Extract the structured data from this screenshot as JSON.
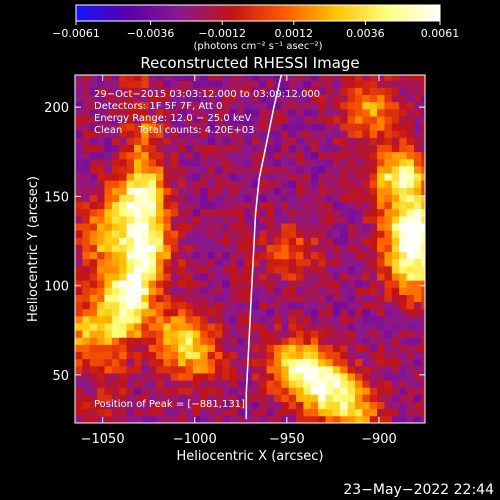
{
  "chart_data": {
    "type": "heatmap",
    "title": "Reconstructed RHESSI Image",
    "xlabel": "Heliocentric X (arcsec)",
    "ylabel": "Heliocentric Y (arcsec)",
    "xlim": [
      -1065,
      -875
    ],
    "ylim": [
      23,
      218
    ],
    "x_ticks": [
      -1050,
      -1000,
      -950,
      -900
    ],
    "x_tick_labels": [
      "−1050",
      "−1000",
      "−950",
      "−900"
    ],
    "y_ticks": [
      50,
      100,
      150,
      200
    ],
    "y_tick_labels": [
      "50",
      "100",
      "150",
      "200"
    ],
    "colorbar": {
      "min": -0.0061,
      "max": 0.0061,
      "ticks": [
        -0.0061,
        -0.0036,
        -0.0012,
        0.0012,
        0.0036,
        0.0061
      ],
      "tick_labels": [
        "−0.0061",
        "−0.0036",
        "−0.0012",
        "0.0012",
        "0.0036",
        "0.0061"
      ],
      "units": "(photons cm⁻² s⁻¹ asec⁻²)",
      "colormap": [
        "#1414ff",
        "#5a00aa",
        "#8a1890",
        "#c31414",
        "#ff5a00",
        "#ffc400",
        "#ffff80",
        "#ffffff"
      ]
    },
    "annotations": [
      "29−Oct−2015 03:03:12.000 to 03:09:12.000",
      "Detectors: 1F 5F 7F, Att 0",
      "Energy Range: 12.0 − 25.0 keV",
      "Clean     Total counts: 4.20E+03"
    ],
    "peak_label": "Position of Peak = [−881,131]",
    "peak_position": [
      -881,
      131
    ],
    "sources": [
      {
        "x": -1032,
        "y": 148,
        "intensity": 0.004
      },
      {
        "x": -1040,
        "y": 96,
        "intensity": 0.0045
      },
      {
        "x": -1028,
        "y": 120,
        "intensity": 0.0035
      },
      {
        "x": -1057,
        "y": 73,
        "intensity": 0.0035
      },
      {
        "x": -1049,
        "y": 128,
        "intensity": 0.003
      },
      {
        "x": -1010,
        "y": 72,
        "intensity": 0.003
      },
      {
        "x": -1000,
        "y": 60,
        "intensity": 0.0025
      },
      {
        "x": -945,
        "y": 55,
        "intensity": 0.004
      },
      {
        "x": -930,
        "y": 45,
        "intensity": 0.0045
      },
      {
        "x": -915,
        "y": 31,
        "intensity": 0.0035
      },
      {
        "x": -888,
        "y": 160,
        "intensity": 0.005
      },
      {
        "x": -881,
        "y": 131,
        "intensity": 0.0061
      },
      {
        "x": -880,
        "y": 108,
        "intensity": 0.004
      },
      {
        "x": -905,
        "y": 198,
        "intensity": 0.003
      },
      {
        "x": -948,
        "y": 118,
        "intensity": 0.002
      }
    ],
    "limb_curve": [
      [
        -953,
        218
      ],
      [
        -957,
        200
      ],
      [
        -961,
        180
      ],
      [
        -965,
        160
      ],
      [
        -967,
        140
      ],
      [
        -968,
        120
      ],
      [
        -969,
        100
      ],
      [
        -970,
        80
      ],
      [
        -971,
        60
      ],
      [
        -972,
        40
      ],
      [
        -972,
        25
      ]
    ],
    "grid": false,
    "legend": "none"
  },
  "footer": {
    "timestamp": "23−May−2022 22:44"
  }
}
